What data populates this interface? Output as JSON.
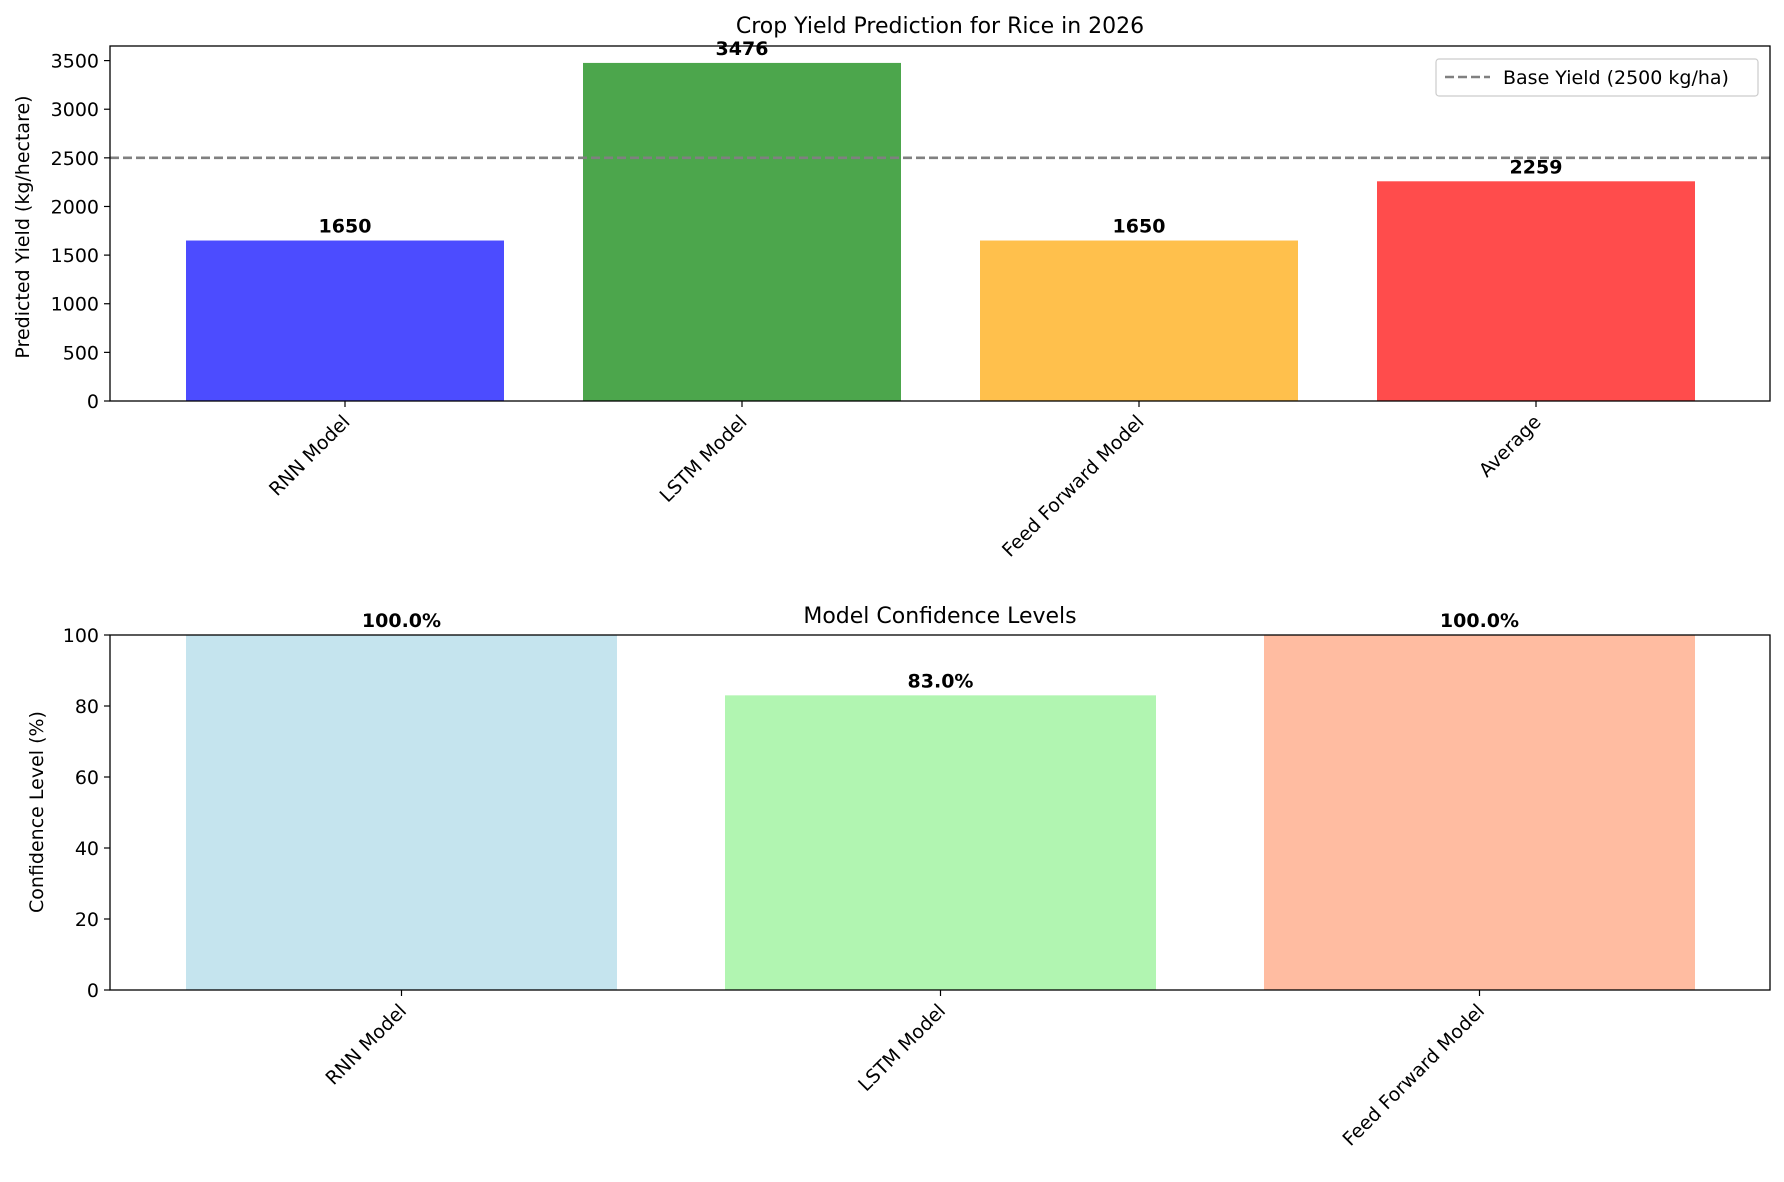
{
  "chart_data": [
    {
      "type": "bar",
      "title": "Crop Yield Prediction for Rice in 2026",
      "xlabel": "",
      "ylabel": "Predicted Yield (kg/hectare)",
      "categories": [
        "RNN Model",
        "LSTM Model",
        "Feed Forward Model",
        "Average"
      ],
      "values": [
        1650,
        3476,
        1650,
        2259
      ],
      "value_labels": [
        "1650",
        "3476",
        "1650",
        "2259"
      ],
      "colors": [
        "#4c4cff",
        "#4ca64c",
        "#ffc04c",
        "#ff4c4c"
      ],
      "ylim": [
        0,
        3650
      ],
      "yticks": [
        0,
        500,
        1000,
        1500,
        2000,
        2500,
        3000,
        3500
      ],
      "ytick_labels": [
        "0",
        "500",
        "1000",
        "1500",
        "2000",
        "2500",
        "3000",
        "3500"
      ],
      "reference_line": {
        "value": 2500,
        "label": "Base Yield (2500 kg/ha)",
        "color": "#808080",
        "style": "dashed"
      },
      "legend": {
        "placement": "top-right",
        "entries": [
          "Base Yield (2500 kg/ha)"
        ]
      },
      "grid": false,
      "xtick_rotation": -45
    },
    {
      "type": "bar",
      "title": "Model Confidence Levels",
      "xlabel": "",
      "ylabel": "Confidence Level (%)",
      "categories": [
        "RNN Model",
        "LSTM Model",
        "Feed Forward Model"
      ],
      "values": [
        100.0,
        83.0,
        100.0
      ],
      "value_labels": [
        "100.0%",
        "83.0%",
        "100.0%"
      ],
      "colors": [
        "#c5e4ee",
        "#b1f5b1",
        "#ffbca1"
      ],
      "ylim": [
        0,
        100
      ],
      "yticks": [
        0,
        20,
        40,
        60,
        80,
        100
      ],
      "ytick_labels": [
        "0",
        "20",
        "40",
        "60",
        "80",
        "100"
      ],
      "grid": false,
      "xtick_rotation": -45
    }
  ]
}
